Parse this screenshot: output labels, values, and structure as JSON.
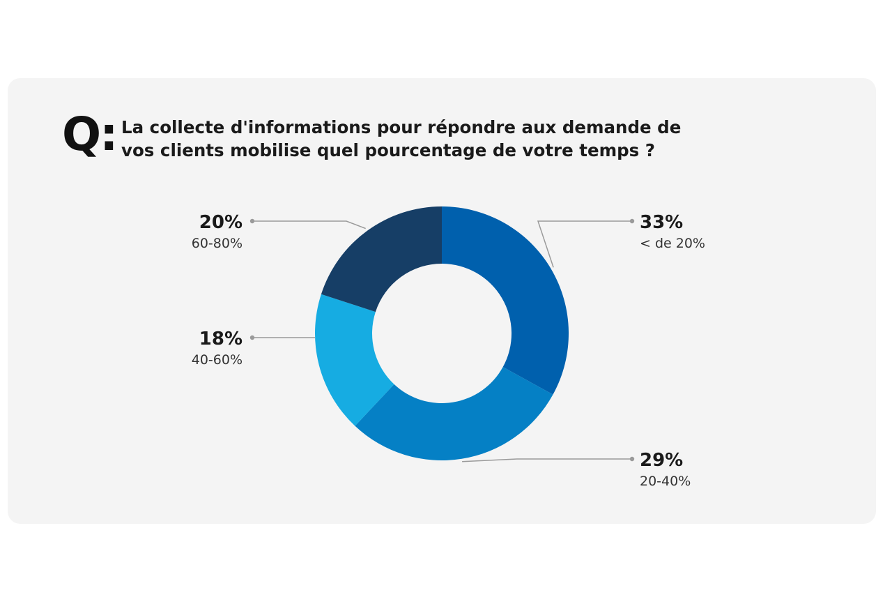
{
  "question": {
    "prefix": "Q:",
    "line1": "La collecte d'informations pour répondre aux demande de",
    "line2": "vos clients mobilise quel pourcentage de votre temps ?"
  },
  "colors": {
    "card_background": "#f4f4f4",
    "leader_line": "#9a9a9a",
    "label_value": "#1a1a1a",
    "label_category": "#333333"
  },
  "chart_data": {
    "type": "pie",
    "donut": true,
    "start": "top, clockwise",
    "slices": [
      {
        "label": "< de 20%",
        "value": 33,
        "value_label": "33%",
        "color": "#0060ad",
        "label_side": "right-top"
      },
      {
        "label": "20-40%",
        "value": 29,
        "value_label": "29%",
        "color": "#0580c5",
        "label_side": "right-bottom"
      },
      {
        "label": "40-60%",
        "value": 18,
        "value_label": "18%",
        "color": "#16ace2",
        "label_side": "left-middle"
      },
      {
        "label": "60-80%",
        "value": 20,
        "value_label": "20%",
        "color": "#163e66",
        "label_side": "left-top"
      }
    ]
  }
}
